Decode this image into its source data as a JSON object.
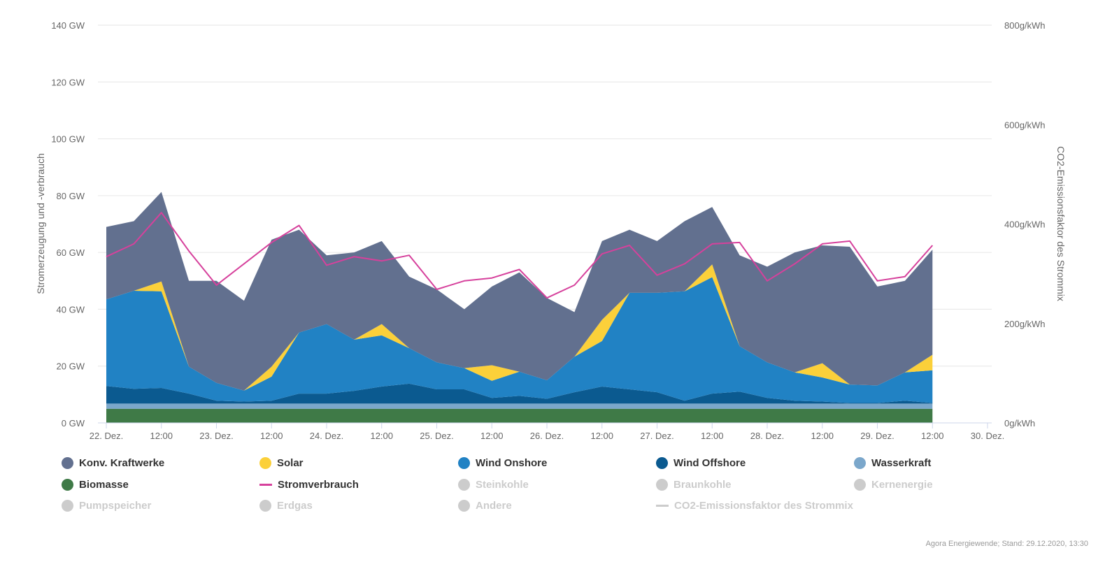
{
  "chart_data": {
    "type": "area",
    "stacked": true,
    "title": "",
    "ylabel": "Stromerzeugung und -verbrauch",
    "y2label": "CO2-Emissionsfaktor des Strommix",
    "ylim": [
      0,
      140
    ],
    "y2lim": [
      0,
      800
    ],
    "xlim": [
      0,
      8
    ],
    "yticks": [
      "0 GW",
      "20 GW",
      "40 GW",
      "60 GW",
      "80 GW",
      "100 GW",
      "120 GW",
      "140 GW"
    ],
    "y2ticks": [
      "0g/kWh",
      "200g/kWh",
      "400g/kWh",
      "600g/kWh",
      "800g/kWh"
    ],
    "xticks": [
      {
        "v": 0,
        "label": "22. Dez."
      },
      {
        "v": 0.5,
        "label": "12:00"
      },
      {
        "v": 1,
        "label": "23. Dez."
      },
      {
        "v": 1.5,
        "label": "12:00"
      },
      {
        "v": 2,
        "label": "24. Dez."
      },
      {
        "v": 2.5,
        "label": "12:00"
      },
      {
        "v": 3,
        "label": "25. Dez."
      },
      {
        "v": 3.5,
        "label": "12:00"
      },
      {
        "v": 4,
        "label": "26. Dez."
      },
      {
        "v": 4.5,
        "label": "12:00"
      },
      {
        "v": 5,
        "label": "27. Dez."
      },
      {
        "v": 5.5,
        "label": "12:00"
      },
      {
        "v": 6,
        "label": "28. Dez."
      },
      {
        "v": 6.5,
        "label": "12:00"
      },
      {
        "v": 7,
        "label": "29. Dez."
      },
      {
        "v": 7.5,
        "label": "12:00"
      },
      {
        "v": 8,
        "label": "30. Dez."
      }
    ],
    "x_unit": "days since 22. Dez.",
    "x": [
      0,
      0.25,
      0.5,
      0.75,
      1.0,
      1.25,
      1.5,
      1.75,
      2.0,
      2.25,
      2.5,
      2.75,
      3.0,
      3.25,
      3.5,
      3.75,
      4.0,
      4.25,
      4.5,
      4.75,
      5.0,
      5.25,
      5.5,
      5.75,
      6.0,
      6.25,
      6.5,
      6.75,
      7.0,
      7.25,
      7.5
    ],
    "series": [
      {
        "name": "Biomasse",
        "color": "#3f7a47",
        "values": [
          5,
          5,
          5,
          5,
          5,
          5,
          5,
          5,
          5,
          5,
          5,
          5,
          5,
          5,
          5,
          5,
          5,
          5,
          5,
          5,
          5,
          5,
          5,
          5,
          5,
          5,
          5,
          5,
          5,
          5,
          5
        ]
      },
      {
        "name": "Wasserkraft",
        "color": "#7ba7cb",
        "values": [
          1.8,
          1.8,
          1.8,
          1.8,
          1.8,
          1.8,
          1.8,
          1.8,
          1.8,
          1.8,
          1.8,
          1.8,
          1.8,
          1.8,
          1.8,
          1.8,
          1.8,
          1.8,
          1.8,
          1.8,
          1.8,
          1.8,
          1.8,
          1.8,
          1.8,
          1.8,
          1.8,
          1.8,
          1.8,
          1.8,
          1.8
        ]
      },
      {
        "name": "Wind Offshore",
        "color": "#0b5a90",
        "values": [
          6.2,
          5.2,
          5.5,
          3.5,
          1.0,
          0.7,
          1.0,
          3.5,
          3.5,
          4.5,
          6.0,
          7.0,
          5.0,
          5.0,
          2.0,
          2.7,
          1.7,
          4.0,
          6.0,
          5.0,
          4.0,
          1.0,
          3.5,
          4.2,
          2.0,
          1.0,
          0.7,
          0.2,
          0.2,
          1.0,
          0.2
        ]
      },
      {
        "name": "Wind Onshore",
        "color": "#2182c4",
        "values": [
          30.5,
          34.5,
          34.0,
          9.5,
          6.3,
          3.9,
          8.5,
          21.5,
          24.5,
          18.0,
          18.0,
          12.5,
          9.5,
          7.5,
          6.0,
          8.5,
          6.5,
          12.5,
          16.0,
          34.0,
          35.0,
          38.5,
          41.0,
          16.0,
          12.5,
          10.0,
          8.5,
          6.5,
          6.2,
          10.0,
          11.5
        ]
      },
      {
        "name": "Solar",
        "color": "#fbd03a",
        "values": [
          0,
          0,
          3.5,
          0,
          0,
          0,
          3.5,
          0,
          0,
          0,
          4.0,
          0,
          0,
          0,
          5.5,
          0,
          0,
          0,
          7.5,
          0,
          0,
          0,
          4.5,
          0,
          0,
          0,
          5.0,
          0,
          0,
          0,
          5.5
        ]
      },
      {
        "name": "Konv. Kraftwerke",
        "color": "#62708f",
        "values": [
          25.5,
          24.5,
          31.5,
          30.2,
          35.9,
          31.6,
          44.7,
          36.2,
          24.2,
          30.7,
          29.2,
          25.2,
          25.7,
          20.7,
          27.7,
          35.0,
          29.0,
          15.7,
          27.7,
          22.2,
          18.2,
          24.7,
          20.2,
          32.0,
          33.7,
          42.2,
          41.5,
          48.5,
          34.8,
          32.2,
          37.0
        ]
      }
    ],
    "lines": [
      {
        "name": "Stromverbrauch",
        "color": "#d6419c",
        "values": [
          58.5,
          63.0,
          74.0,
          60.5,
          48.5,
          56.0,
          63.5,
          69.5,
          55.5,
          58.5,
          57.0,
          59.0,
          47.0,
          50.0,
          51.0,
          54.0,
          44.0,
          48.5,
          59.5,
          62.5,
          52.0,
          56.0,
          63.0,
          63.5,
          50.0,
          56.0,
          63.0,
          64.0,
          50.0,
          51.5,
          62.5
        ]
      }
    ]
  },
  "legend": {
    "items": [
      {
        "name": "Konv. Kraftwerke",
        "color": "#62708f",
        "visible": true,
        "kind": "dot"
      },
      {
        "name": "Solar",
        "color": "#fbd03a",
        "visible": true,
        "kind": "dot"
      },
      {
        "name": "Wind Onshore",
        "color": "#2182c4",
        "visible": true,
        "kind": "dot"
      },
      {
        "name": "Wind Offshore",
        "color": "#0b5a90",
        "visible": true,
        "kind": "dot"
      },
      {
        "name": "Wasserkraft",
        "color": "#7ba7cb",
        "visible": true,
        "kind": "dot"
      },
      {
        "name": "Biomasse",
        "color": "#3f7a47",
        "visible": true,
        "kind": "dot"
      },
      {
        "name": "Stromverbrauch",
        "color": "#d6419c",
        "visible": true,
        "kind": "line"
      },
      {
        "name": "Steinkohle",
        "color": "#cccccc",
        "visible": false,
        "kind": "dot"
      },
      {
        "name": "Braunkohle",
        "color": "#cccccc",
        "visible": false,
        "kind": "dot"
      },
      {
        "name": "Kernenergie",
        "color": "#cccccc",
        "visible": false,
        "kind": "dot"
      },
      {
        "name": "Pumpspeicher",
        "color": "#cccccc",
        "visible": false,
        "kind": "dot"
      },
      {
        "name": "Erdgas",
        "color": "#cccccc",
        "visible": false,
        "kind": "dot"
      },
      {
        "name": "Andere",
        "color": "#cccccc",
        "visible": false,
        "kind": "dot"
      },
      {
        "name": "CO2-Emissionsfaktor des Strommix",
        "color": "#cccccc",
        "visible": false,
        "kind": "line"
      }
    ]
  },
  "credits": "Agora Energiewende; Stand: 29.12.2020, 13:30"
}
